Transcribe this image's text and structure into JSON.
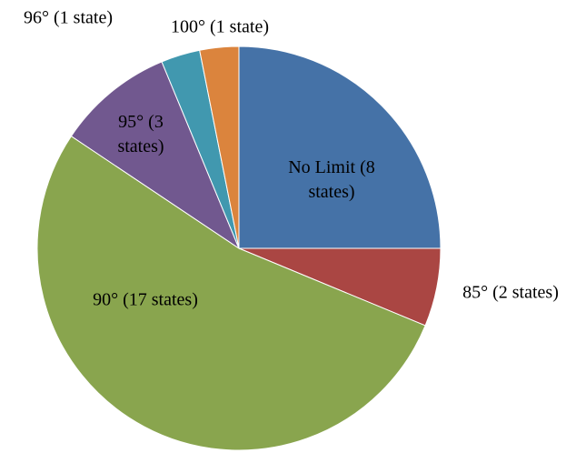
{
  "chart_data": {
    "type": "pie",
    "categories": [
      "No Limit (8 states)",
      "85° (2 states)",
      "90° (17 states)",
      "95° (3 states)",
      "96° (1 state)",
      "100° (1 state)"
    ],
    "values": [
      8,
      2,
      17,
      3,
      1,
      1
    ],
    "colors": [
      "#4572a7",
      "#aa4643",
      "#89a54e",
      "#71588f",
      "#4198af",
      "#db843d"
    ]
  }
}
